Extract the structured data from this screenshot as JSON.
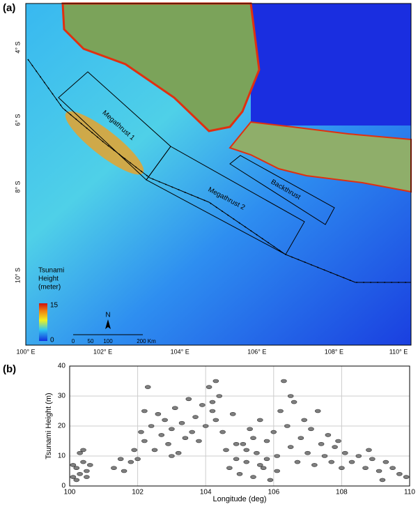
{
  "map": {
    "panel_label": "(a)",
    "lat_labels": [
      "4° S",
      "6° S",
      "8° S",
      "10° S"
    ],
    "lon_labels": [
      "100° E",
      "102° E",
      "104° E",
      "106° E",
      "108° E",
      "110° E"
    ],
    "zones": [
      "Megathrust 1",
      "Megathrust 2",
      "Backthrust"
    ],
    "legend": {
      "title": [
        "Tsunami",
        "Height",
        "(meter)"
      ],
      "max": "15",
      "min": "0"
    },
    "scale_bar": [
      "0",
      "50",
      "100",
      "200 Km"
    ],
    "north": "N"
  },
  "chart_data": {
    "type": "scatter",
    "panel_label": "(b)",
    "x_label": "Longitude (deg)",
    "y_label": "Tsunami Height (m)",
    "color": "#7f7f7f",
    "grid": true,
    "xlim": [
      100,
      110
    ],
    "ylim": [
      0,
      40
    ],
    "xticks": [
      100,
      102,
      104,
      106,
      108,
      110
    ],
    "yticks": [
      0,
      10,
      20,
      30,
      40
    ],
    "x": [
      100.1,
      100.2,
      100.3,
      100.3,
      100.4,
      100.5,
      100.6,
      100.2,
      100.5,
      100.1,
      101.3,
      101.5,
      101.6,
      101.8,
      101.9,
      102.1,
      102.2,
      102.3,
      102.2,
      102.4,
      102.5,
      102.6,
      102.7,
      102.8,
      102.9,
      103.0,
      103.1,
      103.2,
      103.3,
      103.4,
      103.5,
      103.6,
      103.7,
      103.8,
      103.9,
      104.0,
      104.1,
      104.2,
      104.3,
      104.4,
      104.3,
      104.5,
      104.6,
      104.7,
      104.8,
      104.9,
      105.0,
      105.1,
      105.2,
      105.3,
      105.4,
      105.5,
      105.6,
      105.7,
      105.8,
      105.9,
      106.0,
      106.1,
      106.2,
      106.3,
      106.4,
      106.5,
      106.6,
      106.7,
      106.8,
      106.9,
      107.0,
      107.1,
      107.2,
      107.3,
      107.4,
      107.5,
      107.6,
      107.7,
      107.8,
      108.0,
      108.1,
      108.3,
      108.5,
      108.7,
      108.9,
      109.1,
      109.3,
      109.5,
      109.7,
      109.9,
      105.2,
      105.6,
      105.4,
      106.1,
      104.9,
      105.8,
      107.9,
      102.0,
      103.0,
      104.2,
      106.5,
      109.2,
      108.8,
      100.4
    ],
    "values": [
      3,
      6,
      11,
      4,
      8,
      5,
      7,
      2,
      3,
      7,
      6,
      9,
      5,
      8,
      12,
      18,
      25,
      33,
      15,
      20,
      12,
      24,
      17,
      22,
      14,
      19,
      26,
      11,
      21,
      16,
      29,
      18,
      23,
      15,
      27,
      20,
      33,
      25,
      35,
      30,
      22,
      18,
      12,
      6,
      24,
      9,
      4,
      14,
      8,
      19,
      3,
      11,
      22,
      6,
      15,
      2,
      18,
      10,
      25,
      35,
      20,
      13,
      28,
      8,
      16,
      22,
      11,
      19,
      7,
      25,
      14,
      10,
      17,
      8,
      13,
      6,
      11,
      8,
      10,
      6,
      9,
      5,
      8,
      6,
      4,
      3,
      12,
      7,
      16,
      5,
      14,
      9,
      15,
      9,
      10,
      28,
      30,
      2,
      12,
      12
    ]
  }
}
